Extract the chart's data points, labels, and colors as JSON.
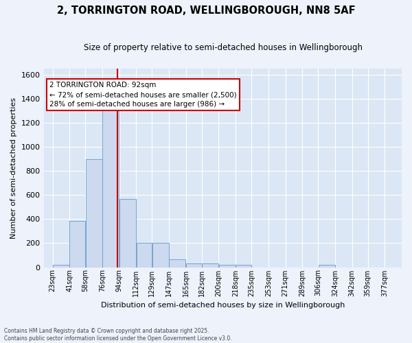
{
  "title": "2, TORRINGTON ROAD, WELLINGBOROUGH, NN8 5AF",
  "subtitle": "Size of property relative to semi-detached houses in Wellingborough",
  "xlabel": "Distribution of semi-detached houses by size in Wellingborough",
  "ylabel": "Number of semi-detached properties",
  "bin_labels": [
    "23sqm",
    "41sqm",
    "58sqm",
    "76sqm",
    "94sqm",
    "112sqm",
    "129sqm",
    "147sqm",
    "165sqm",
    "182sqm",
    "200sqm",
    "218sqm",
    "235sqm",
    "253sqm",
    "271sqm",
    "289sqm",
    "306sqm",
    "324sqm",
    "342sqm",
    "359sqm",
    "377sqm"
  ],
  "bin_left_edges": [
    23,
    41,
    58,
    76,
    94,
    112,
    129,
    147,
    165,
    182,
    200,
    218,
    235,
    253,
    271,
    289,
    306,
    324,
    342,
    359,
    377
  ],
  "bin_widths": [
    18,
    17,
    18,
    18,
    18,
    17,
    18,
    18,
    17,
    18,
    18,
    17,
    18,
    18,
    18,
    17,
    18,
    18,
    17,
    18,
    18
  ],
  "bar_heights": [
    20,
    385,
    900,
    1320,
    570,
    205,
    205,
    65,
    30,
    30,
    18,
    18,
    0,
    0,
    0,
    0,
    18,
    0,
    0,
    0,
    0
  ],
  "bar_color": "#ccd9ee",
  "bar_edge_color": "#6699cc",
  "property_size": 92,
  "property_line_color": "#cc0000",
  "annotation_text": "2 TORRINGTON ROAD: 92sqm\n← 72% of semi-detached houses are smaller (2,500)\n28% of semi-detached houses are larger (986) →",
  "annotation_box_color": "#cc0000",
  "ylim": [
    0,
    1650
  ],
  "yticks": [
    0,
    200,
    400,
    600,
    800,
    1000,
    1200,
    1400,
    1600
  ],
  "xlim_left": 14,
  "xlim_right": 395,
  "background_color": "#dce7f5",
  "fig_background_color": "#edf2fb",
  "grid_color": "#ffffff",
  "footer_line1": "Contains HM Land Registry data © Crown copyright and database right 2025.",
  "footer_line2": "Contains public sector information licensed under the Open Government Licence v3.0."
}
